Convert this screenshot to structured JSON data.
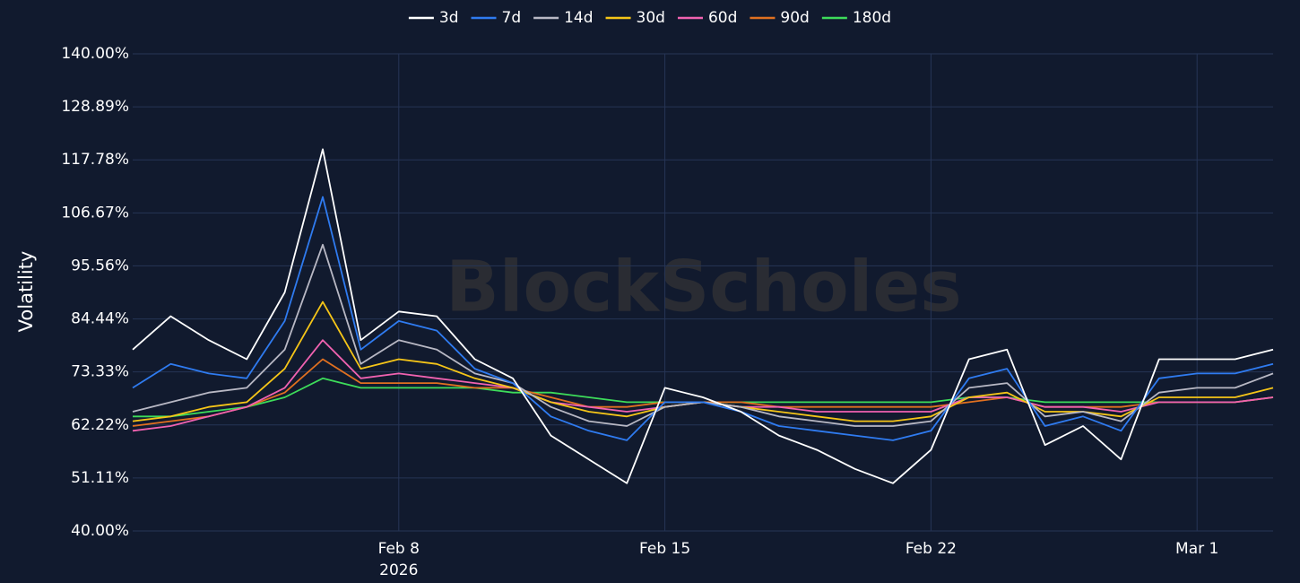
{
  "chart_data": {
    "type": "line",
    "watermark": "BlockScholes",
    "y_label": "Volatility",
    "x_year_label": "2026",
    "x": [
      "2026-02-01",
      "2026-02-02",
      "2026-02-03",
      "2026-02-04",
      "2026-02-05",
      "2026-02-06",
      "2026-02-07",
      "2026-02-08",
      "2026-02-09",
      "2026-02-10",
      "2026-02-11",
      "2026-02-12",
      "2026-02-13",
      "2026-02-14",
      "2026-02-15",
      "2026-02-16",
      "2026-02-17",
      "2026-02-18",
      "2026-02-19",
      "2026-02-20",
      "2026-02-21",
      "2026-02-22",
      "2026-02-23",
      "2026-02-24",
      "2026-02-25",
      "2026-02-26",
      "2026-02-27",
      "2026-02-28",
      "2026-03-01",
      "2026-03-02",
      "2026-03-03"
    ],
    "xlim": [
      "2026-02-01",
      "2026-03-03"
    ],
    "xticks": [
      {
        "value": "2026-02-08",
        "label": "Feb 8"
      },
      {
        "value": "2026-02-15",
        "label": "Feb 15"
      },
      {
        "value": "2026-02-22",
        "label": "Feb 22"
      },
      {
        "value": "2026-03-01",
        "label": "Mar 1"
      }
    ],
    "ylim": [
      40,
      140
    ],
    "yticks": [
      {
        "value": 40,
        "label": "40.00%"
      },
      {
        "value": 51.11,
        "label": "51.11%"
      },
      {
        "value": 62.22,
        "label": "62.22%"
      },
      {
        "value": 73.33,
        "label": "73.33%"
      },
      {
        "value": 84.44,
        "label": "84.44%"
      },
      {
        "value": 95.56,
        "label": "95.56%"
      },
      {
        "value": 106.67,
        "label": "106.67%"
      },
      {
        "value": 117.78,
        "label": "117.78%"
      },
      {
        "value": 128.89,
        "label": "128.89%"
      },
      {
        "value": 140,
        "label": "140.00%"
      }
    ],
    "grid": true,
    "legend": "top",
    "series": [
      {
        "name": "3d",
        "color": "#ffffff",
        "values": [
          78,
          85,
          80,
          76,
          90,
          120,
          80,
          86,
          85,
          76,
          72,
          60,
          55,
          50,
          70,
          68,
          65,
          60,
          57,
          53,
          50,
          57,
          76,
          78,
          58,
          62,
          55,
          76,
          76,
          76,
          78
        ]
      },
      {
        "name": "7d",
        "color": "#2f7bf0",
        "values": [
          70,
          75,
          73,
          72,
          84,
          110,
          78,
          84,
          82,
          74,
          71,
          64,
          61,
          59,
          67,
          67,
          65,
          62,
          61,
          60,
          59,
          61,
          72,
          74,
          62,
          64,
          61,
          72,
          73,
          73,
          75
        ]
      },
      {
        "name": "14d",
        "color": "#b8b8c4",
        "values": [
          65,
          67,
          69,
          70,
          78,
          100,
          75,
          80,
          78,
          73,
          71,
          66,
          63,
          62,
          66,
          67,
          66,
          64,
          63,
          62,
          62,
          63,
          70,
          71,
          64,
          65,
          63,
          69,
          70,
          70,
          73
        ]
      },
      {
        "name": "30d",
        "color": "#f5c518",
        "values": [
          63,
          64,
          66,
          67,
          74,
          88,
          74,
          76,
          75,
          72,
          70,
          67,
          65,
          64,
          66,
          67,
          66,
          65,
          64,
          63,
          63,
          64,
          68,
          69,
          65,
          65,
          64,
          68,
          68,
          68,
          70
        ]
      },
      {
        "name": "60d",
        "color": "#f062b0",
        "values": [
          61,
          62,
          64,
          66,
          70,
          80,
          72,
          73,
          72,
          71,
          70,
          67,
          66,
          65,
          66,
          67,
          66,
          66,
          65,
          65,
          65,
          65,
          68,
          68,
          66,
          66,
          65,
          67,
          67,
          67,
          68
        ]
      },
      {
        "name": "90d",
        "color": "#e07020",
        "values": [
          62,
          63,
          64,
          66,
          69,
          76,
          71,
          71,
          71,
          70,
          70,
          68,
          66,
          66,
          67,
          67,
          67,
          66,
          66,
          66,
          66,
          66,
          67,
          68,
          66,
          66,
          66,
          67,
          67,
          67,
          68
        ]
      },
      {
        "name": "180d",
        "color": "#3ddc5a",
        "values": [
          64,
          64,
          65,
          66,
          68,
          72,
          70,
          70,
          70,
          70,
          69,
          69,
          68,
          67,
          67,
          67,
          67,
          67,
          67,
          67,
          67,
          67,
          68,
          68,
          67,
          67,
          67,
          67,
          67,
          67,
          68
        ]
      }
    ]
  }
}
